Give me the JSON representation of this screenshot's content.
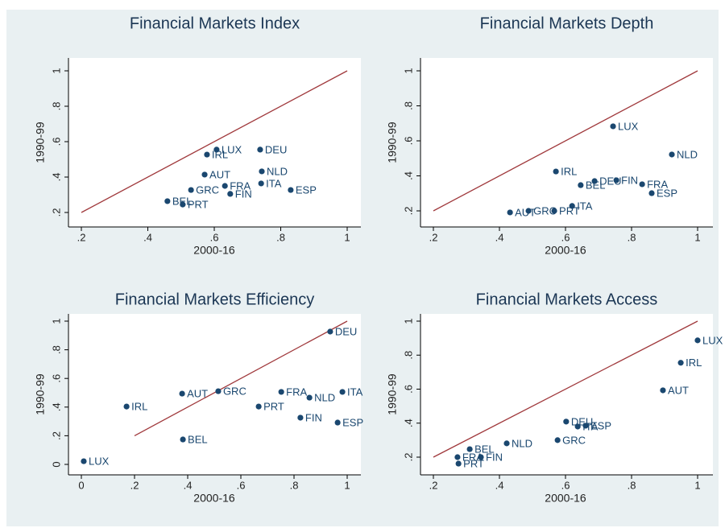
{
  "chart_data": [
    {
      "type": "scatter",
      "title": "Financial Markets Index",
      "xlabel": "2000-16",
      "ylabel": "1990-99",
      "labels": [
        "IRL",
        "LUX",
        "DEU",
        "AUT",
        "NLD",
        "GRC",
        "FRA",
        "ITA",
        "ESP",
        "FIN",
        "BEL",
        "PRT"
      ],
      "x": [
        0.578,
        0.607,
        0.738,
        0.571,
        0.743,
        0.53,
        0.632,
        0.741,
        0.83,
        0.648,
        0.459,
        0.505
      ],
      "values": [
        0.527,
        0.555,
        0.555,
        0.414,
        0.432,
        0.327,
        0.35,
        0.364,
        0.327,
        0.305,
        0.264,
        0.245
      ],
      "color": "#1a476f",
      "line_color": "#a0393c",
      "line_range": [
        0.2,
        1
      ],
      "xlim": [
        0.2,
        1
      ],
      "ylim": [
        0.2,
        1
      ],
      "xticks": [
        {
          "value": 0.2,
          "label": ".2"
        },
        {
          "value": 0.4,
          "label": ".4"
        },
        {
          "value": 0.6,
          "label": ".6"
        },
        {
          "value": 0.8,
          "label": ".8"
        },
        1
      ],
      "yticks": [
        {
          "value": 0.2,
          "label": ".2"
        },
        {
          "value": 0.4,
          "label": ".4"
        },
        {
          "value": 0.6,
          "label": ".6"
        },
        {
          "value": 0.8,
          "label": ".8"
        },
        1
      ]
    },
    {
      "type": "scatter",
      "title": "Financial Markets Depth",
      "xlabel": "2000-16",
      "ylabel": "1990-99",
      "labels": [
        "LUX",
        "NLD",
        "IRL",
        "DEU",
        "FIN",
        "BEL",
        "FRA",
        "ESP",
        "ITA",
        "AUT",
        "GRC",
        "PRT"
      ],
      "x": [
        0.744,
        0.922,
        0.571,
        0.688,
        0.754,
        0.646,
        0.832,
        0.861,
        0.62,
        0.432,
        0.488,
        0.566
      ],
      "values": [
        0.683,
        0.522,
        0.425,
        0.37,
        0.375,
        0.347,
        0.352,
        0.301,
        0.228,
        0.191,
        0.2,
        0.2
      ],
      "color": "#1a476f",
      "line_color": "#a0393c",
      "line_range": [
        0.2,
        1
      ],
      "xlim": [
        0.2,
        1
      ],
      "ylim": [
        0.2,
        1
      ],
      "xticks": [
        {
          "value": 0.2,
          "label": ".2"
        },
        {
          "value": 0.4,
          "label": ".4"
        },
        {
          "value": 0.6,
          "label": ".6"
        },
        {
          "value": 0.8,
          "label": ".8"
        },
        1
      ],
      "yticks": [
        {
          "value": 0.2,
          "label": ".2"
        },
        {
          "value": 0.4,
          "label": ".4"
        },
        {
          "value": 0.6,
          "label": ".6"
        },
        {
          "value": 0.8,
          "label": ".8"
        },
        1
      ]
    },
    {
      "type": "scatter",
      "title": "Financial Markets Efficiency",
      "xlabel": "2000-16",
      "ylabel": "1990-99",
      "labels": [
        "DEU",
        "IRL",
        "AUT",
        "GRC",
        "FRA",
        "NLD",
        "ITA",
        "PRT",
        "FIN",
        "ESP",
        "BEL",
        "LUX"
      ],
      "x": [
        0.936,
        0.17,
        0.379,
        0.515,
        0.752,
        0.858,
        0.982,
        0.667,
        0.824,
        0.964,
        0.382,
        0.009
      ],
      "values": [
        0.927,
        0.404,
        0.494,
        0.511,
        0.506,
        0.466,
        0.506,
        0.404,
        0.326,
        0.292,
        0.174,
        0.022
      ],
      "color": "#1a476f",
      "line_color": "#a0393c",
      "line_range": [
        0.2,
        1
      ],
      "xlim": [
        0,
        1
      ],
      "ylim": [
        0,
        1
      ],
      "xticks": [
        0,
        {
          "value": 0.2,
          "label": ".2"
        },
        {
          "value": 0.4,
          "label": ".4"
        },
        {
          "value": 0.6,
          "label": ".6"
        },
        {
          "value": 0.8,
          "label": ".8"
        },
        1
      ],
      "yticks": [
        0,
        {
          "value": 0.2,
          "label": ".2"
        },
        {
          "value": 0.4,
          "label": ".4"
        },
        {
          "value": 0.6,
          "label": ".6"
        },
        {
          "value": 0.8,
          "label": ".8"
        },
        1
      ]
    },
    {
      "type": "scatter",
      "title": "Financial Markets Access",
      "xlabel": "2000-16",
      "ylabel": "1990-99",
      "labels": [
        "LUX",
        "IRL",
        "AUT",
        "DEU",
        "ITA",
        "ESP",
        "GRC",
        "NLD",
        "BEL",
        "FRA",
        "FIN",
        "PRT"
      ],
      "x": [
        1.0,
        0.949,
        0.895,
        0.602,
        0.637,
        0.661,
        0.576,
        0.422,
        0.31,
        0.273,
        0.344,
        0.276
      ],
      "values": [
        0.887,
        0.755,
        0.593,
        0.409,
        0.38,
        0.385,
        0.3,
        0.281,
        0.247,
        0.2,
        0.2,
        0.162
      ],
      "color": "#1a476f",
      "line_color": "#a0393c",
      "line_range": [
        0.2,
        1
      ],
      "xlim": [
        0.2,
        1
      ],
      "ylim": [
        0.2,
        1
      ],
      "xticks": [
        {
          "value": 0.2,
          "label": ".2"
        },
        {
          "value": 0.4,
          "label": ".4"
        },
        {
          "value": 0.6,
          "label": ".6"
        },
        {
          "value": 0.8,
          "label": ".8"
        },
        1
      ],
      "yticks": [
        {
          "value": 0.2,
          "label": ".2"
        },
        {
          "value": 0.4,
          "label": ".4"
        },
        {
          "value": 0.6,
          "label": ".6"
        },
        {
          "value": 0.8,
          "label": ".8"
        },
        1
      ]
    }
  ]
}
